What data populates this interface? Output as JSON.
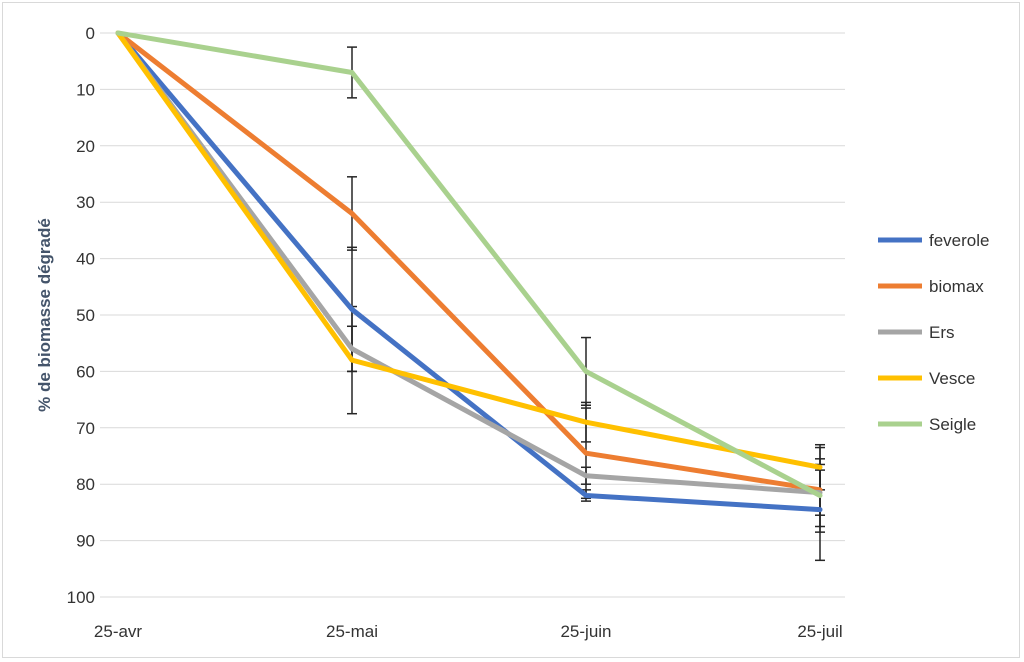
{
  "chart_data": {
    "type": "line",
    "title": "",
    "xlabel": "",
    "ylabel": "% de biomasse dégradé",
    "x": [
      "25-avr",
      "25-mai",
      "25-juin",
      "25-juil"
    ],
    "ylim": [
      0,
      100
    ],
    "y_inverted": true,
    "yticks": [
      0,
      10,
      20,
      30,
      40,
      50,
      60,
      70,
      80,
      90,
      100
    ],
    "grid": true,
    "legend_position": "right",
    "series": [
      {
        "name": "feverole",
        "color": "#4472c4",
        "values": [
          0,
          49,
          82,
          84.5
        ],
        "error": [
          0,
          11,
          1,
          9
        ]
      },
      {
        "name": "biomax",
        "color": "#ed7d31",
        "values": [
          0,
          32,
          74.5,
          81
        ],
        "error": [
          0,
          6.5,
          8,
          7.5
        ]
      },
      {
        "name": "Ers",
        "color": "#a5a5a5",
        "values": [
          0,
          56,
          78.5,
          81.5
        ],
        "error": [
          0,
          4,
          1.5,
          4
        ]
      },
      {
        "name": "Vesce",
        "color": "#ffc000",
        "values": [
          0,
          58,
          69,
          77
        ],
        "error": [
          0,
          9.5,
          3.5,
          4
        ]
      },
      {
        "name": "Seigle",
        "color": "#a9d18e",
        "values": [
          0,
          7,
          60,
          82
        ],
        "error": [
          0,
          4.5,
          6,
          5.5
        ]
      }
    ]
  }
}
